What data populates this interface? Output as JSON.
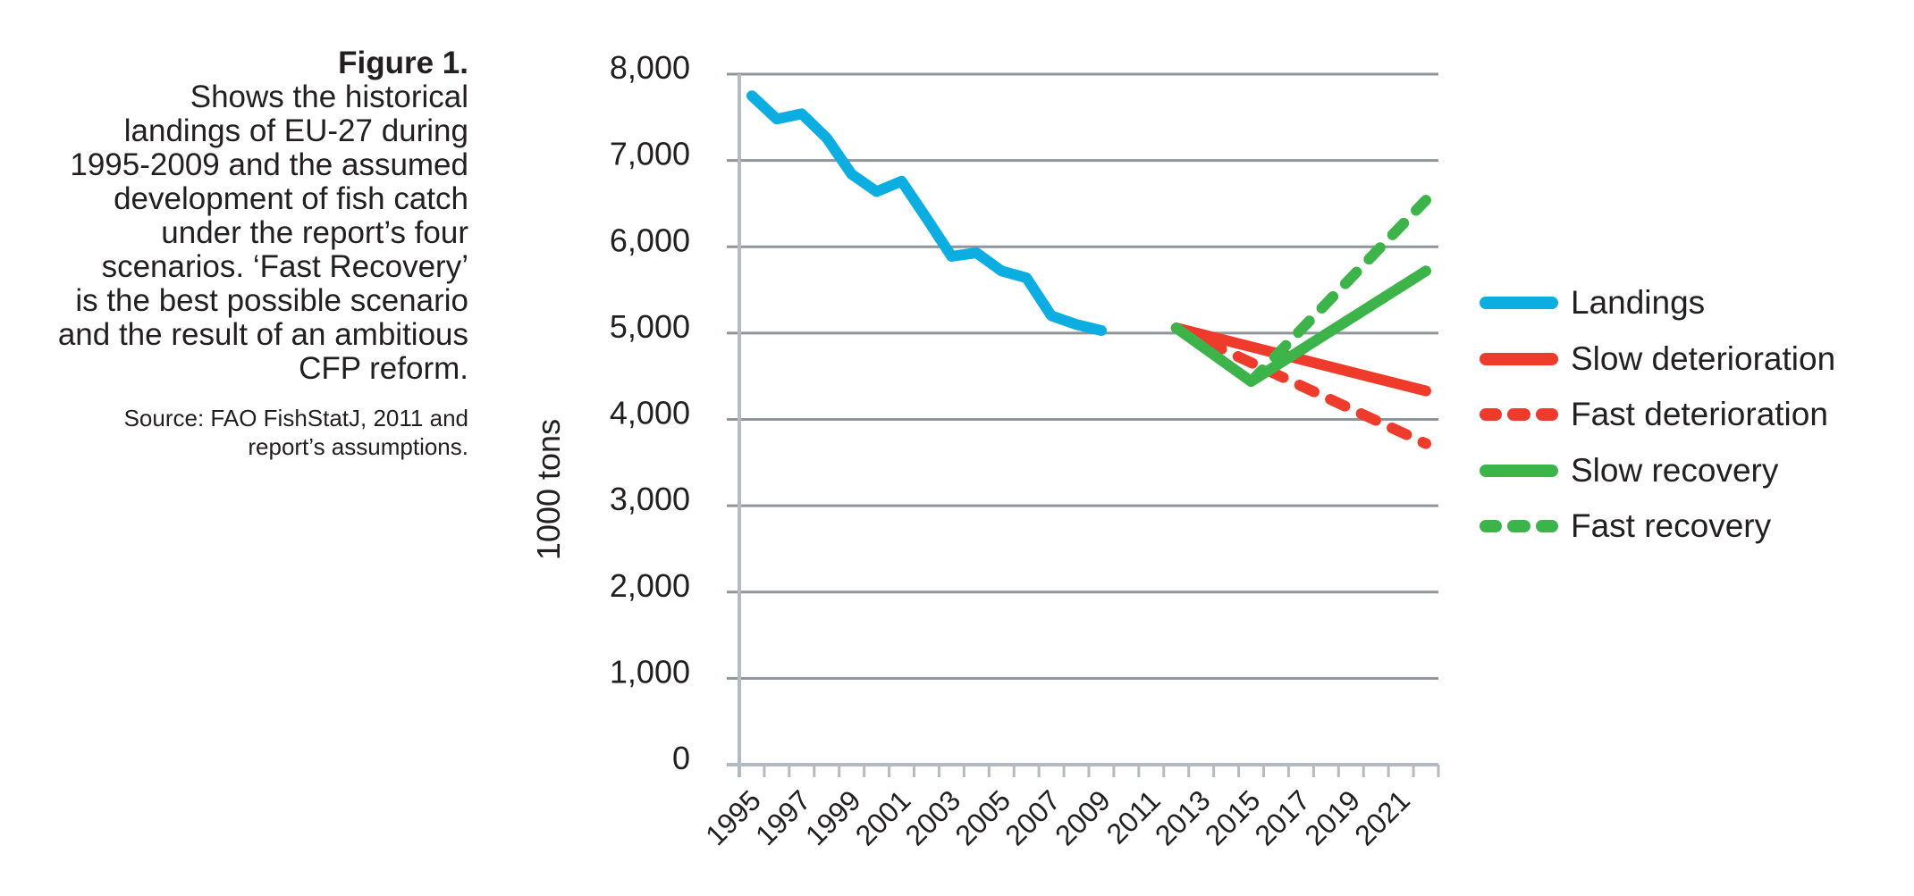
{
  "caption": {
    "title": "Figure 1.",
    "lines": [
      "Shows the historical",
      "landings of EU-27 during",
      "1995-2009 and the assumed",
      "development of fish catch",
      "under the report’s four",
      "scenarios. ‘Fast Recovery’",
      "is the best possible scenario",
      "and the result of an ambitious",
      "CFP reform."
    ],
    "source_lines": [
      "Source: FAO FishStatJ, 2011 and",
      "report’s assumptions."
    ]
  },
  "colors": {
    "landings": "#0cadE0",
    "deterioration": "#ee3b2b",
    "recovery": "#3db449",
    "grid": "#8e959b",
    "axis": "#b4bac0",
    "text": "#231f20"
  },
  "chart_data": {
    "type": "line",
    "title": "",
    "xlabel": "",
    "ylabel": "1000 tons",
    "ylim": [
      0,
      8000
    ],
    "yticks": [
      0,
      1000,
      2000,
      3000,
      4000,
      5000,
      6000,
      7000,
      8000
    ],
    "ytick_labels": [
      "0",
      "1,000",
      "2,000",
      "3,000",
      "4,000",
      "5,000",
      "6,000",
      "7,000",
      "8,000"
    ],
    "categories": [
      1995,
      1996,
      1997,
      1998,
      1999,
      2000,
      2001,
      2002,
      2003,
      2004,
      2005,
      2006,
      2007,
      2008,
      2009,
      2010,
      2011,
      2012,
      2013,
      2014,
      2015,
      2016,
      2017,
      2018,
      2019,
      2020,
      2021,
      2022
    ],
    "xtick_labels": [
      "1995",
      "1997",
      "1999",
      "2001",
      "2003",
      "2005",
      "2007",
      "2009",
      "2011",
      "2013",
      "2015",
      "2017",
      "2019",
      "2021"
    ],
    "grid": true,
    "legend_position": "right",
    "series": [
      {
        "name": "Landings",
        "color_key": "landings",
        "dashed": false,
        "points": [
          [
            1995,
            7750
          ],
          [
            1996,
            7480
          ],
          [
            1997,
            7540
          ],
          [
            1998,
            7260
          ],
          [
            1999,
            6840
          ],
          [
            2000,
            6640
          ],
          [
            2001,
            6760
          ],
          [
            2002,
            6330
          ],
          [
            2003,
            5890
          ],
          [
            2004,
            5930
          ],
          [
            2005,
            5720
          ],
          [
            2006,
            5640
          ],
          [
            2007,
            5200
          ],
          [
            2008,
            5100
          ],
          [
            2009,
            5030
          ]
        ]
      },
      {
        "name": "Slow deterioration",
        "color_key": "deterioration",
        "dashed": false,
        "points": [
          [
            2012,
            5060
          ],
          [
            2022,
            4330
          ]
        ]
      },
      {
        "name": "Fast deterioration",
        "color_key": "deterioration",
        "dashed": true,
        "points": [
          [
            2012,
            5060
          ],
          [
            2022,
            3720
          ]
        ]
      },
      {
        "name": "Slow recovery",
        "color_key": "recovery",
        "dashed": false,
        "points": [
          [
            2012,
            5060
          ],
          [
            2015,
            4440
          ],
          [
            2022,
            5720
          ]
        ]
      },
      {
        "name": "Fast recovery",
        "color_key": "recovery",
        "dashed": true,
        "points": [
          [
            2015,
            4440
          ],
          [
            2022,
            6540
          ]
        ]
      }
    ]
  }
}
